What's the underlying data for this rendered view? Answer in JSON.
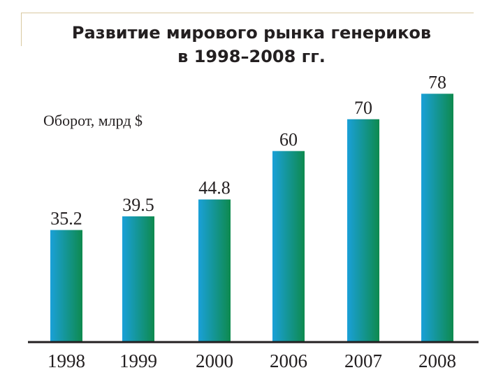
{
  "chart_data": {
    "type": "bar",
    "title_line1": "Развитие мирового рынка генериков",
    "title_line2": "в 1998–2008 гг.",
    "ylabel": "Оборот, млрд $",
    "xlabel": "",
    "categories": [
      "1998",
      "1999",
      "2000",
      "2006",
      "2007",
      "2008"
    ],
    "values": [
      35.2,
      39.5,
      44.8,
      60,
      70,
      78
    ],
    "value_labels": [
      "35.2",
      "39.5",
      "44.8",
      "60",
      "70",
      "78"
    ],
    "ylim": [
      0,
      85
    ],
    "grid": false,
    "legend": "none",
    "colors": {
      "bar_left": "#1aa0d8",
      "bar_right": "#0e8a4e",
      "axis": "#231f20"
    }
  }
}
